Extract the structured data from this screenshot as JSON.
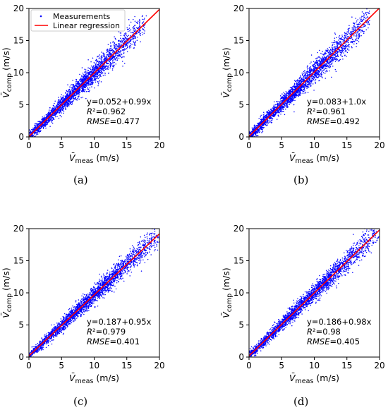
{
  "colors": {
    "points": "#0000ff",
    "line": "#ff0000",
    "axis": "#000000"
  },
  "chart_data": [
    {
      "type": "scatter",
      "panel_label": "(a)",
      "xlabel": "V̄meas (m/s)",
      "ylabel": "V̄comp (m/s)",
      "xlim": [
        0,
        20
      ],
      "ylim": [
        0,
        20
      ],
      "xticks": [
        0,
        5,
        10,
        15,
        20
      ],
      "yticks": [
        0,
        5,
        10,
        15,
        20
      ],
      "legend": {
        "entries": [
          "Measurements",
          "Linear regression"
        ],
        "position": "top-left"
      },
      "regression": {
        "intercept": 0.052,
        "slope": 0.99
      },
      "stats": {
        "equation": "y=0.052+0.99x",
        "r2": "R²=0.962",
        "rmse": "RMSE=0.477"
      },
      "series": [
        {
          "name": "Measurements",
          "extent": {
            "x": [
              0,
              18
            ],
            "y": [
              0,
              18.5
            ]
          },
          "spread_sd": 0.48
        },
        {
          "name": "Linear regression"
        }
      ]
    },
    {
      "type": "scatter",
      "panel_label": "(b)",
      "xlabel": "V̄meas (m/s)",
      "ylabel": "V̄comp (m/s)",
      "xlim": [
        0,
        20
      ],
      "ylim": [
        0,
        20
      ],
      "xticks": [
        0,
        5,
        10,
        15,
        20
      ],
      "yticks": [
        0,
        5,
        10,
        15,
        20
      ],
      "regression": {
        "intercept": 0.083,
        "slope": 1.0
      },
      "stats": {
        "equation": "y=0.083+1.0x",
        "r2": "R²=0.961",
        "rmse": "RMSE=0.492"
      },
      "series": [
        {
          "extent": {
            "x": [
              0,
              18.5
            ],
            "y": [
              0,
              19
            ]
          },
          "spread_sd": 0.49
        },
        {}
      ]
    },
    {
      "type": "scatter",
      "panel_label": "(c)",
      "xlabel": "V̄meas (m/s)",
      "ylabel": "V̄comp (m/s)",
      "xlim": [
        0,
        20
      ],
      "ylim": [
        0,
        20
      ],
      "xticks": [
        0,
        5,
        10,
        15,
        20
      ],
      "yticks": [
        0,
        5,
        10,
        15,
        20
      ],
      "regression": {
        "intercept": 0.187,
        "slope": 0.95
      },
      "stats": {
        "equation": "y=0.187+0.95x",
        "r2": "R²=0.979",
        "rmse": "RMSE=0.401"
      },
      "series": [
        {
          "extent": {
            "x": [
              0,
              20
            ],
            "y": [
              0,
              20
            ]
          },
          "spread_sd": 0.4
        },
        {}
      ]
    },
    {
      "type": "scatter",
      "panel_label": "(d)",
      "xlabel": "V̄meas (m/s)",
      "ylabel": "V̄comp (m/s)",
      "xlim": [
        0,
        20
      ],
      "ylim": [
        0,
        20
      ],
      "xticks": [
        0,
        5,
        10,
        15,
        20
      ],
      "yticks": [
        0,
        5,
        10,
        15,
        20
      ],
      "regression": {
        "intercept": 0.186,
        "slope": 0.98
      },
      "stats": {
        "equation": "y=0.186+0.98x",
        "r2": "R²=0.98",
        "rmse": "RMSE=0.405"
      },
      "series": [
        {
          "extent": {
            "x": [
              0,
              20
            ],
            "y": [
              0,
              20
            ]
          },
          "spread_sd": 0.4
        },
        {}
      ]
    }
  ]
}
